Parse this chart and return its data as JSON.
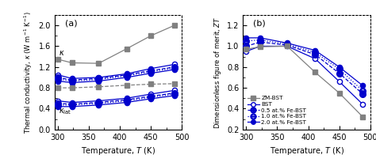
{
  "temps": [
    300,
    323,
    366,
    411,
    450,
    488
  ],
  "panel_a": {
    "ZM_BST_total": [
      1.35,
      1.28,
      1.27,
      1.55,
      1.8,
      2.0
    ],
    "ZM_BST_lat": [
      0.8,
      0.8,
      0.82,
      0.85,
      0.87,
      0.88
    ],
    "BST_total": [
      1.05,
      0.98,
      1.0,
      1.07,
      1.17,
      1.25
    ],
    "Fe05_total": [
      1.0,
      0.95,
      0.98,
      1.05,
      1.13,
      1.2
    ],
    "Fe10_total": [
      0.97,
      0.93,
      0.96,
      1.03,
      1.11,
      1.18
    ],
    "Fe20_total": [
      0.93,
      0.9,
      0.93,
      1.0,
      1.08,
      1.15
    ],
    "BST_lat": [
      0.55,
      0.52,
      0.55,
      0.6,
      0.68,
      0.75
    ],
    "Fe05_lat": [
      0.5,
      0.49,
      0.52,
      0.57,
      0.64,
      0.7
    ],
    "Fe10_lat": [
      0.47,
      0.47,
      0.5,
      0.55,
      0.62,
      0.68
    ],
    "Fe20_lat": [
      0.44,
      0.44,
      0.47,
      0.52,
      0.59,
      0.65
    ]
  },
  "panel_b": {
    "ZM_BST": [
      0.97,
      0.995,
      1.0,
      0.75,
      0.55,
      0.32
    ],
    "BST": [
      0.95,
      1.0,
      1.0,
      0.88,
      0.66,
      0.44
    ],
    "Fe05": [
      1.0,
      1.04,
      1.01,
      0.92,
      0.74,
      0.54
    ],
    "Fe10": [
      1.05,
      1.06,
      1.02,
      0.94,
      0.78,
      0.57
    ],
    "Fe20": [
      1.08,
      1.08,
      1.03,
      0.96,
      0.8,
      0.62
    ]
  },
  "colors": {
    "ZM_BST": "#808080",
    "blue": "#0000cc"
  },
  "marker_oplus": "$\\oplus$",
  "marker_half": "$\\circleddash$"
}
